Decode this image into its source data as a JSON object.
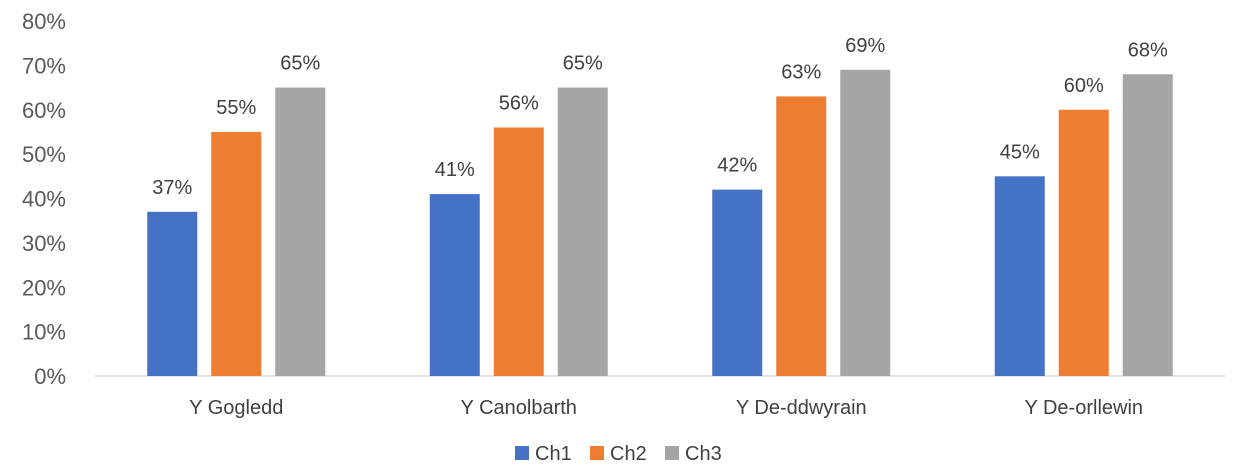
{
  "chart_data": {
    "type": "bar",
    "title": "",
    "xlabel": "",
    "ylabel": "",
    "categories": [
      "Y Gogledd",
      "Y Canolbarth",
      "Y De-ddwyrain",
      "Y De-orllewin"
    ],
    "series": [
      {
        "name": "Ch1",
        "color": "#4472C4",
        "values": [
          37,
          41,
          42,
          45
        ]
      },
      {
        "name": "Ch2",
        "color": "#ED7D31",
        "values": [
          55,
          56,
          63,
          60
        ]
      },
      {
        "name": "Ch3",
        "color": "#A5A5A5",
        "values": [
          65,
          65,
          69,
          68
        ]
      }
    ],
    "data_labels": [
      [
        "37%",
        "41%",
        "42%",
        "45%"
      ],
      [
        "55%",
        "56%",
        "63%",
        "60%"
      ],
      [
        "65%",
        "65%",
        "69%",
        "68%"
      ]
    ],
    "ylim": [
      0,
      80
    ],
    "yticks": [
      0,
      10,
      20,
      30,
      40,
      50,
      60,
      70,
      80
    ],
    "ytick_labels": [
      "0%",
      "10%",
      "20%",
      "30%",
      "40%",
      "50%",
      "60%",
      "70%",
      "80%"
    ],
    "grid": false,
    "legend_position": "bottom"
  }
}
